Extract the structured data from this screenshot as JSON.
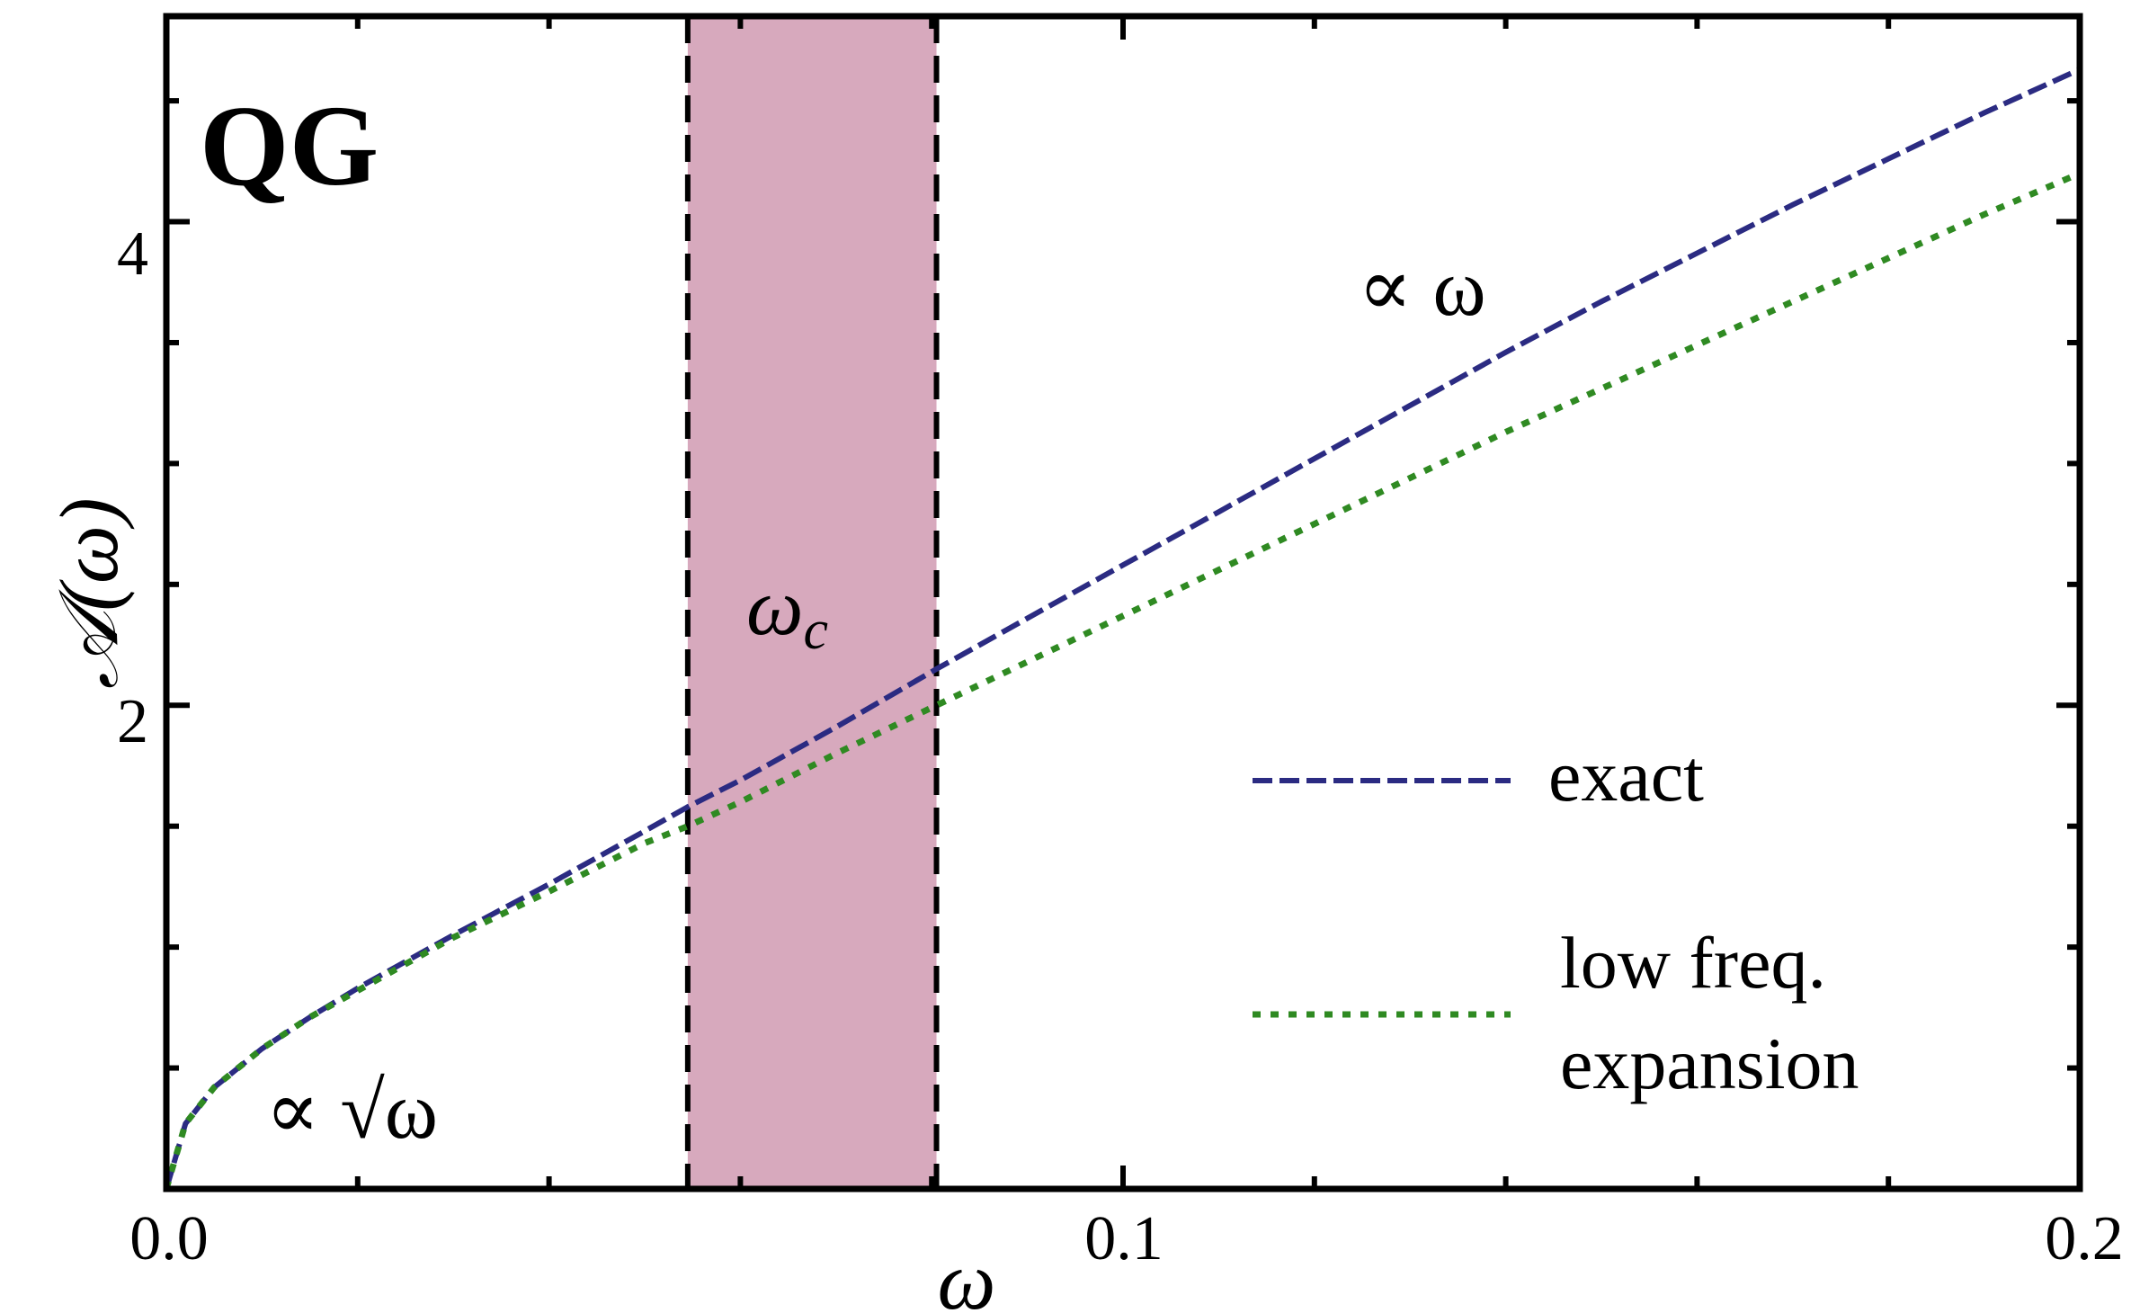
{
  "chart_data": {
    "type": "line",
    "panel_label": "QG",
    "xlabel": "ω",
    "ylabel": "𝒜(ω)",
    "xlim": [
      0.0,
      0.2
    ],
    "ylim": [
      0,
      4.85
    ],
    "x_ticks": [
      "0.0",
      "0.1",
      "0.2"
    ],
    "y_ticks": [
      "2",
      "4"
    ],
    "shaded_band": {
      "x_start": 0.0545,
      "x_end": 0.0805,
      "color": "#d7a9bd",
      "label": "ω",
      "label_subscript": "c"
    },
    "series": [
      {
        "name": "exact",
        "color": "#2b2b82",
        "style": "dashed",
        "x": [
          0.0,
          0.002,
          0.005,
          0.01,
          0.015,
          0.02,
          0.03,
          0.04,
          0.05,
          0.0545,
          0.06,
          0.07,
          0.0805,
          0.09,
          0.1,
          0.11,
          0.12,
          0.13,
          0.14,
          0.15,
          0.16,
          0.17,
          0.18,
          0.19,
          0.2
        ],
        "y": [
          0.0,
          0.27,
          0.42,
          0.58,
          0.71,
          0.83,
          1.05,
          1.26,
          1.48,
          1.58,
          1.69,
          1.91,
          2.15,
          2.36,
          2.58,
          2.8,
          3.02,
          3.24,
          3.46,
          3.67,
          3.87,
          4.07,
          4.26,
          4.45,
          4.63
        ]
      },
      {
        "name": "low freq. expansion",
        "legend_lines": [
          "low freq.",
          "expansion"
        ],
        "color": "#2f8a22",
        "style": "dotted",
        "x": [
          0.0,
          0.002,
          0.005,
          0.01,
          0.015,
          0.02,
          0.03,
          0.04,
          0.05,
          0.0545,
          0.06,
          0.07,
          0.0805,
          0.09,
          0.1,
          0.11,
          0.12,
          0.13,
          0.14,
          0.15,
          0.16,
          0.17,
          0.18,
          0.19,
          0.2
        ],
        "y": [
          0.0,
          0.27,
          0.42,
          0.58,
          0.71,
          0.82,
          1.04,
          1.23,
          1.43,
          1.5,
          1.6,
          1.8,
          2.0,
          2.18,
          2.37,
          2.56,
          2.75,
          2.94,
          3.13,
          3.31,
          3.49,
          3.67,
          3.85,
          4.03,
          4.2
        ]
      }
    ],
    "annotations": [
      {
        "text": "∝ ω",
        "near": "upper-right of curve"
      },
      {
        "text": "∝ √ω",
        "near": "bottom-left"
      }
    ],
    "legend_placement": "lower-right",
    "grid": false
  }
}
